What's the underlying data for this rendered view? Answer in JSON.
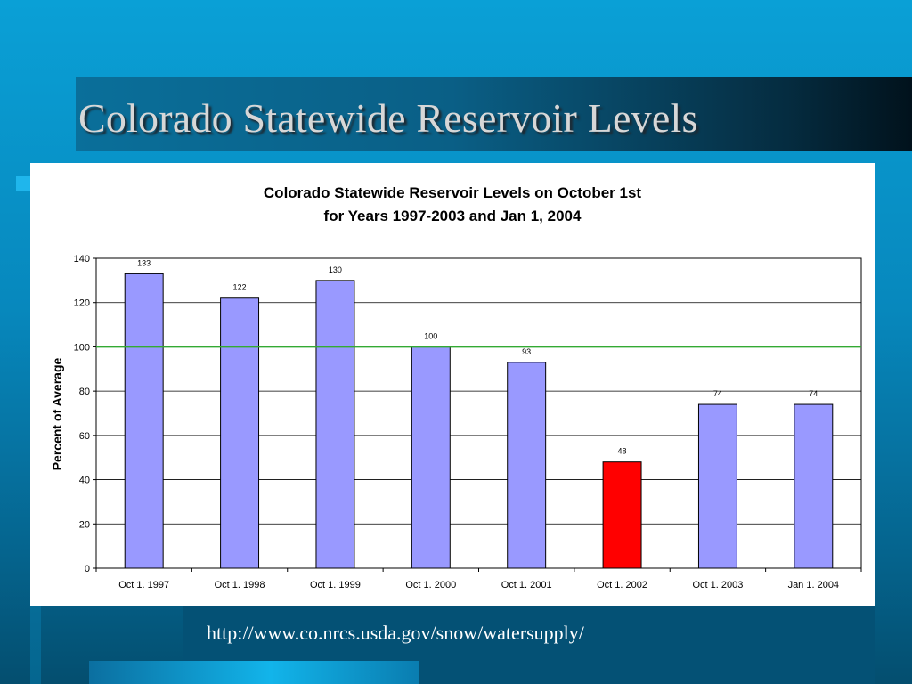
{
  "slide": {
    "title": "Colorado Statewide Reservoir Levels",
    "source_url": "http://www.co.nrcs.usda.gov/snow/watersupply/"
  },
  "colors": {
    "bar_default": "#9999ff",
    "bar_highlight": "#ff0000",
    "average_line": "#33aa33"
  },
  "chart_data": {
    "type": "bar",
    "title_lines": [
      "Colorado Statewide Reservoir Levels on October 1st",
      "for Years 1997-2003 and Jan 1, 2004"
    ],
    "ylabel": "Percent of Average",
    "xlabel": "",
    "ylim": [
      0,
      140
    ],
    "yticks": [
      0,
      20,
      40,
      60,
      80,
      100,
      120,
      140
    ],
    "grid": true,
    "categories": [
      "Oct 1. 1997",
      "Oct 1. 1998",
      "Oct 1. 1999",
      "Oct 1. 2000",
      "Oct 1. 2001",
      "Oct 1. 2002",
      "Oct 1. 2003",
      "Jan 1. 2004"
    ],
    "values": [
      133,
      122,
      130,
      100,
      93,
      48,
      74,
      74
    ],
    "highlight_index": 5,
    "reference_line": 100
  }
}
